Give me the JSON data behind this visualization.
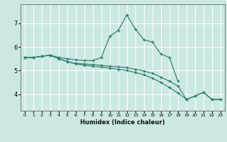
{
  "xlabel": "Humidex (Indice chaleur)",
  "xlim": [
    -0.5,
    23.5
  ],
  "ylim": [
    3.3,
    7.8
  ],
  "xticks": [
    0,
    1,
    2,
    3,
    4,
    5,
    6,
    7,
    8,
    9,
    10,
    11,
    12,
    13,
    14,
    15,
    16,
    17,
    18,
    19,
    20,
    21,
    22,
    23
  ],
  "yticks": [
    4,
    5,
    6,
    7
  ],
  "background_color": "#cce8e4",
  "grid_color": "#ffffff",
  "line_color": "#2e7d6e",
  "lines": [
    {
      "x": [
        0,
        1,
        2,
        3,
        4,
        5,
        6,
        7,
        8,
        9,
        10,
        11,
        12,
        13,
        14,
        15,
        16,
        17,
        18
      ],
      "y": [
        5.55,
        5.55,
        5.6,
        5.65,
        5.55,
        5.5,
        5.45,
        5.42,
        5.42,
        5.55,
        6.45,
        6.7,
        7.35,
        6.75,
        6.3,
        6.2,
        5.7,
        5.55,
        4.55
      ]
    },
    {
      "x": [
        0,
        1,
        2,
        3,
        4,
        5,
        6,
        7,
        8,
        9,
        10,
        11,
        12,
        13,
        14,
        15,
        16,
        17,
        18,
        19,
        20,
        21,
        22,
        23
      ],
      "y": [
        5.55,
        5.55,
        5.6,
        5.65,
        5.5,
        5.38,
        5.3,
        5.28,
        5.25,
        5.22,
        5.18,
        5.15,
        5.12,
        5.05,
        4.98,
        4.88,
        4.72,
        4.55,
        4.35,
        3.78,
        3.92,
        4.08,
        3.78,
        3.78
      ]
    },
    {
      "x": [
        0,
        1,
        2,
        3,
        4,
        5,
        6,
        7,
        8,
        9,
        10,
        11,
        12,
        13,
        14,
        15,
        16,
        17,
        18,
        19,
        20,
        21,
        22,
        23
      ],
      "y": [
        5.55,
        5.55,
        5.6,
        5.65,
        5.5,
        5.38,
        5.28,
        5.22,
        5.18,
        5.15,
        5.1,
        5.05,
        5.0,
        4.92,
        4.82,
        4.68,
        4.5,
        4.28,
        4.05,
        3.78,
        3.92,
        4.08,
        3.78,
        3.78
      ]
    }
  ]
}
